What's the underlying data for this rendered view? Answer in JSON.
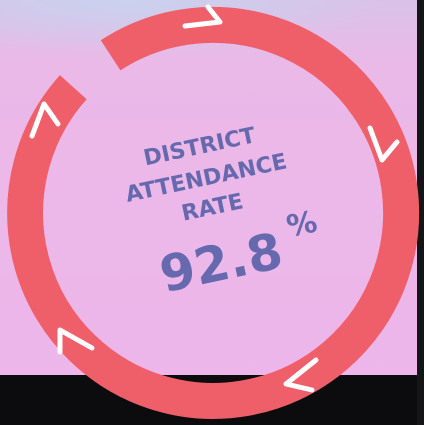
{
  "heading": {
    "lines": [
      "DISTRICT",
      "ATTENDANCE",
      "RATE"
    ]
  },
  "rate": {
    "value": "92.8",
    "unit": "%"
  }
}
